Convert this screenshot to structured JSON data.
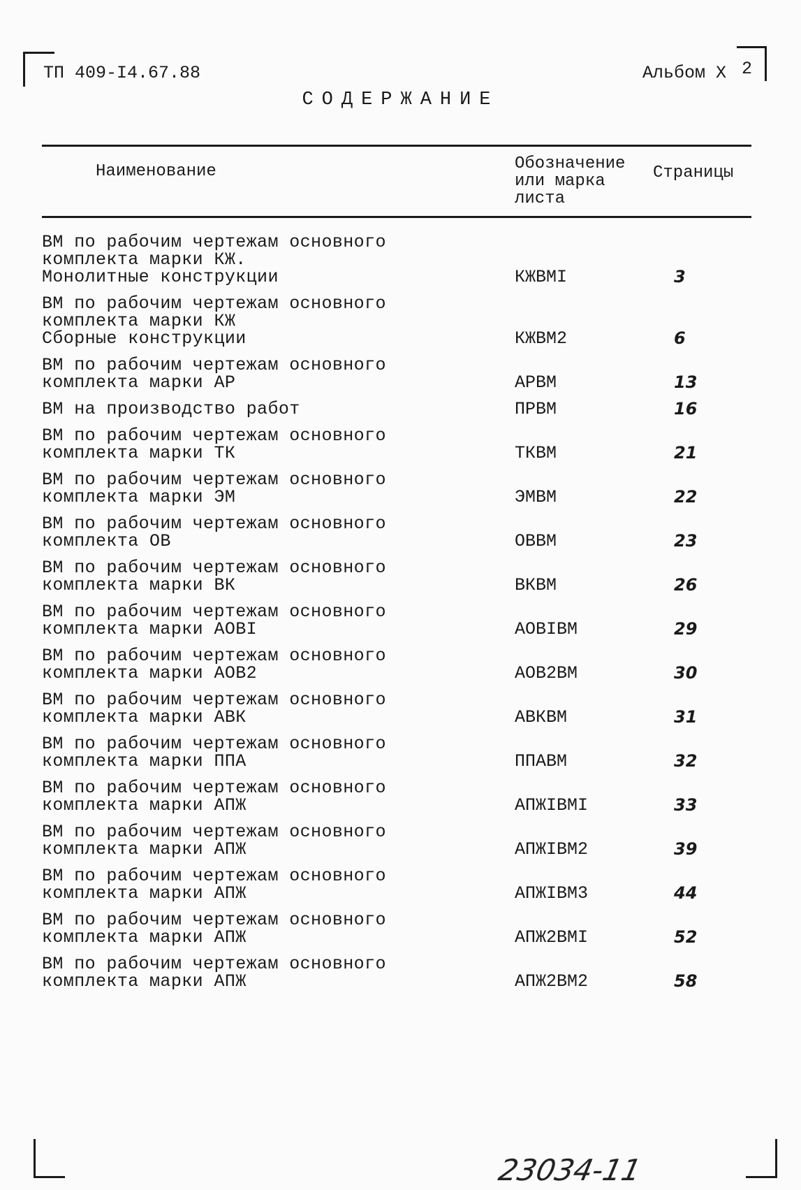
{
  "header": {
    "doc_number": "ТП 409-I4.67.88",
    "album": "Альбом X",
    "sheet": "2"
  },
  "title": "СОДЕРЖАНИЕ",
  "columns": {
    "name": "Наименование",
    "code": [
      "Обозначение",
      "или марка",
      "листа"
    ],
    "pages": "Страницы"
  },
  "rows": [
    {
      "name": [
        "ВМ по рабочим чертежам основного",
        "комплекта марки КЖ.",
        "Монолитные конструкции"
      ],
      "code": "КЖВМI",
      "page": "3"
    },
    {
      "name": [
        "ВМ по рабочим чертежам основного",
        "комплекта марки КЖ",
        "Сборные конструкции"
      ],
      "code": "КЖВМ2",
      "page": "6"
    },
    {
      "name": [
        "ВМ по рабочим чертежам основного",
        "комплекта марки АР"
      ],
      "code": "АРВМ",
      "page": "13"
    },
    {
      "name": [
        "ВМ на производство работ"
      ],
      "code": "ПРВМ",
      "page": "16"
    },
    {
      "name": [
        "ВМ по рабочим чертежам основного",
        "комплекта марки ТК"
      ],
      "code": "ТКВМ",
      "page": "21"
    },
    {
      "name": [
        "ВМ по рабочим чертежам основного",
        "комплекта марки ЭМ"
      ],
      "code": "ЭМВМ",
      "page": "22"
    },
    {
      "name": [
        "ВМ по рабочим чертежам основного",
        "комплекта ОВ"
      ],
      "code": "ОВВМ",
      "page": "23"
    },
    {
      "name": [
        "ВМ по рабочим чертежам основного",
        "комплекта марки ВК"
      ],
      "code": "ВКВМ",
      "page": "26"
    },
    {
      "name": [
        "ВМ по рабочим чертежам основного",
        "комплекта марки АОВI"
      ],
      "code": "АОВIВМ",
      "page": "29"
    },
    {
      "name": [
        "ВМ по рабочим чертежам основного",
        "комплекта марки АОВ2"
      ],
      "code": "АОВ2ВМ",
      "page": "30"
    },
    {
      "name": [
        "ВМ по рабочим чертежам основного",
        "комплекта марки АВК"
      ],
      "code": "АВКВМ",
      "page": "31"
    },
    {
      "name": [
        "ВМ по рабочим чертежам основного",
        "комплекта марки ППА"
      ],
      "code": "ППАВМ",
      "page": "32"
    },
    {
      "name": [
        "ВМ по рабочим чертежам основного",
        "комплекта марки АПЖ"
      ],
      "code": "АПЖIВМI",
      "page": "33"
    },
    {
      "name": [
        "ВМ по рабочим чертежам основного",
        "комплекта марки АПЖ"
      ],
      "code": "АПЖIВМ2",
      "page": "39"
    },
    {
      "name": [
        "ВМ по рабочим чертежам основного",
        "комплекта марки АПЖ"
      ],
      "code": "АПЖIВМ3",
      "page": "44"
    },
    {
      "name": [
        "ВМ по рабочим чертежам основного",
        "комплекта марки АПЖ"
      ],
      "code": "АПЖ2ВМI",
      "page": "52"
    },
    {
      "name": [
        "ВМ по рабочим чертежам основного",
        "комплекта марки АПЖ"
      ],
      "code": "АПЖ2ВМ2",
      "page": "58"
    }
  ],
  "footer": {
    "handwritten_number": "23034-11"
  }
}
